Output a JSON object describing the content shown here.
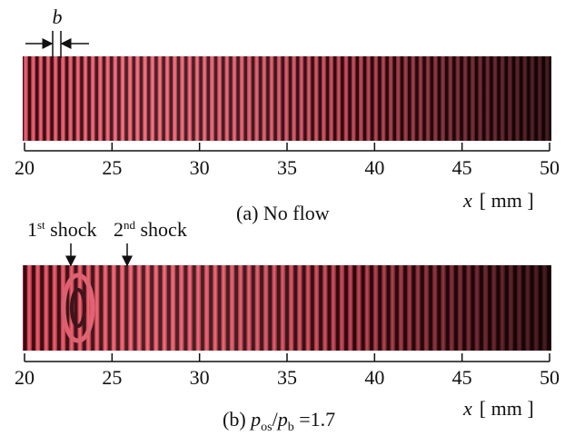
{
  "panels": [
    {
      "xlim": [
        20,
        50
      ],
      "xticks": [
        20,
        25,
        30,
        35,
        40,
        45,
        50
      ],
      "xlabel": {
        "var": "x",
        "unit": "[ mm ]"
      },
      "caption": {
        "text": "(a) No flow"
      },
      "width_label": "b"
    },
    {
      "xlim": [
        20,
        50
      ],
      "xticks": [
        20,
        25,
        30,
        35,
        40,
        45,
        50
      ],
      "xlabel": {
        "var": "x",
        "unit": "[ mm ]"
      },
      "caption": {
        "prefix": "(b) ",
        "p1": "p",
        "sub1": "os",
        "slash": "/",
        "p2": "p",
        "sub2": "b",
        "suffix": " =1.7"
      },
      "annotations": [
        {
          "num": "1",
          "sup": "st",
          "text": " shock"
        },
        {
          "num": "2",
          "sup": "nd",
          "text": " shock"
        }
      ]
    }
  ]
}
